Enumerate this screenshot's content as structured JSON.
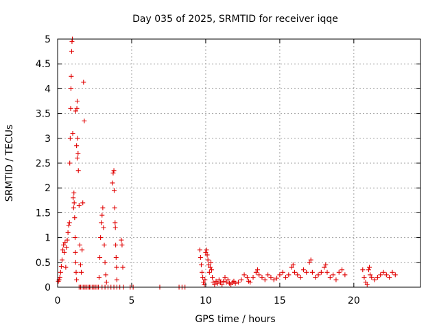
{
  "chart_data": {
    "type": "scatter",
    "title": "Day 035 of 2025, SRMTID for receiver iqqe",
    "xlabel": "GPS time / hours",
    "ylabel": "SRMTID / TECUs",
    "xlim": [
      0,
      24.5
    ],
    "ylim": [
      0,
      5
    ],
    "xticks": [
      0,
      5,
      10,
      15,
      20
    ],
    "xtick_labels": [
      "0",
      "5",
      "10",
      "15",
      "20"
    ],
    "yticks": [
      0,
      0.5,
      1,
      1.5,
      2,
      2.5,
      3,
      3.5,
      4,
      4.5,
      5
    ],
    "ytick_labels": [
      "0",
      "0.5",
      "1",
      "1.5",
      "2",
      "2.5",
      "3",
      "3.5",
      "4",
      "4.5",
      "5"
    ],
    "grid": true,
    "marker": "plus",
    "series": [
      {
        "name": "SRMTID",
        "color": "#e00000",
        "points": [
          [
            0.05,
            0.12
          ],
          [
            0.1,
            0.15
          ],
          [
            0.15,
            0.2
          ],
          [
            0.2,
            0.3
          ],
          [
            0.25,
            0.42
          ],
          [
            0.3,
            0.55
          ],
          [
            0.35,
            0.75
          ],
          [
            0.4,
            0.85
          ],
          [
            0.45,
            0.7
          ],
          [
            0.5,
            0.9
          ],
          [
            0.55,
            0.4
          ],
          [
            0.6,
            0.8
          ],
          [
            0.65,
            0.95
          ],
          [
            0.7,
            1.1
          ],
          [
            0.75,
            1.25
          ],
          [
            0.8,
            1.3
          ],
          [
            0.82,
            2.5
          ],
          [
            0.85,
            3.0
          ],
          [
            0.88,
            3.6
          ],
          [
            0.9,
            4.0
          ],
          [
            0.92,
            4.25
          ],
          [
            0.95,
            4.75
          ],
          [
            0.97,
            4.95
          ],
          [
            1.0,
            5.0
          ],
          [
            1.02,
            3.1
          ],
          [
            1.05,
            1.8
          ],
          [
            1.08,
            1.6
          ],
          [
            1.1,
            1.9
          ],
          [
            1.12,
            1.7
          ],
          [
            1.15,
            1.4
          ],
          [
            1.18,
            1.0
          ],
          [
            1.2,
            0.7
          ],
          [
            1.22,
            0.5
          ],
          [
            1.25,
            0.3
          ],
          [
            1.28,
            0.15
          ],
          [
            1.3,
            3.6
          ],
          [
            1.32,
            3.75
          ],
          [
            1.35,
            3.0
          ],
          [
            1.38,
            2.7
          ],
          [
            1.4,
            2.35
          ],
          [
            1.45,
            1.65
          ],
          [
            1.5,
            0.85
          ],
          [
            1.55,
            0.45
          ],
          [
            1.6,
            0.3
          ],
          [
            1.65,
            0.75
          ],
          [
            1.7,
            1.7
          ],
          [
            1.75,
            4.13
          ],
          [
            1.8,
            3.35
          ],
          [
            1.22,
            3.55
          ],
          [
            1.28,
            2.85
          ],
          [
            1.32,
            2.6
          ],
          [
            1.45,
            0.0
          ],
          [
            1.55,
            0.0
          ],
          [
            1.65,
            0.0
          ],
          [
            1.75,
            0.0
          ],
          [
            1.85,
            0.0
          ],
          [
            1.95,
            0.0
          ],
          [
            2.05,
            0.0
          ],
          [
            2.15,
            0.0
          ],
          [
            2.25,
            0.0
          ],
          [
            2.35,
            0.0
          ],
          [
            2.45,
            0.0
          ],
          [
            2.55,
            0.0
          ],
          [
            2.65,
            0.0
          ],
          [
            2.75,
            0.0
          ],
          [
            2.8,
            0.2
          ],
          [
            2.85,
            0.6
          ],
          [
            2.9,
            1.0
          ],
          [
            2.95,
            1.3
          ],
          [
            3.0,
            1.45
          ],
          [
            3.05,
            1.6
          ],
          [
            3.1,
            1.2
          ],
          [
            3.15,
            0.85
          ],
          [
            3.2,
            0.5
          ],
          [
            3.25,
            0.25
          ],
          [
            3.3,
            0.1
          ],
          [
            3.0,
            0.0
          ],
          [
            3.2,
            0.0
          ],
          [
            3.4,
            0.0
          ],
          [
            3.6,
            0.0
          ],
          [
            3.7,
            2.1
          ],
          [
            3.75,
            2.3
          ],
          [
            3.8,
            2.35
          ],
          [
            3.82,
            1.95
          ],
          [
            3.85,
            1.6
          ],
          [
            3.88,
            1.3
          ],
          [
            3.9,
            1.2
          ],
          [
            3.92,
            0.85
          ],
          [
            3.95,
            0.6
          ],
          [
            3.98,
            0.4
          ],
          [
            4.0,
            0.15
          ],
          [
            3.8,
            0.0
          ],
          [
            4.0,
            0.0
          ],
          [
            4.2,
            0.0
          ],
          [
            4.3,
            0.95
          ],
          [
            4.35,
            0.85
          ],
          [
            4.4,
            0.4
          ],
          [
            4.45,
            0.0
          ],
          [
            4.9,
            0.0
          ],
          [
            5.1,
            0.0
          ],
          [
            6.9,
            0.0
          ],
          [
            8.2,
            0.0
          ],
          [
            8.4,
            0.0
          ],
          [
            8.6,
            0.0
          ],
          [
            9.6,
            0.75
          ],
          [
            9.65,
            0.6
          ],
          [
            9.7,
            0.45
          ],
          [
            9.75,
            0.3
          ],
          [
            9.8,
            0.2
          ],
          [
            9.85,
            0.1
          ],
          [
            9.9,
            0.05
          ],
          [
            9.95,
            0.15
          ],
          [
            10.0,
            0.7
          ],
          [
            10.05,
            0.75
          ],
          [
            10.1,
            0.65
          ],
          [
            10.15,
            0.55
          ],
          [
            10.2,
            0.45
          ],
          [
            10.25,
            0.3
          ],
          [
            10.3,
            0.4
          ],
          [
            10.35,
            0.5
          ],
          [
            10.4,
            0.35
          ],
          [
            10.45,
            0.2
          ],
          [
            10.5,
            0.1
          ],
          [
            10.6,
            0.05
          ],
          [
            10.7,
            0.12
          ],
          [
            10.8,
            0.08
          ],
          [
            10.9,
            0.15
          ],
          [
            11.0,
            0.1
          ],
          [
            11.1,
            0.05
          ],
          [
            11.2,
            0.12
          ],
          [
            11.3,
            0.2
          ],
          [
            11.4,
            0.1
          ],
          [
            11.5,
            0.15
          ],
          [
            11.6,
            0.08
          ],
          [
            11.7,
            0.05
          ],
          [
            11.8,
            0.1
          ],
          [
            11.9,
            0.12
          ],
          [
            12.0,
            0.08
          ],
          [
            12.2,
            0.1
          ],
          [
            12.4,
            0.15
          ],
          [
            12.6,
            0.25
          ],
          [
            12.8,
            0.2
          ],
          [
            12.9,
            0.12
          ],
          [
            13.0,
            0.1
          ],
          [
            13.2,
            0.2
          ],
          [
            13.4,
            0.3
          ],
          [
            13.5,
            0.35
          ],
          [
            13.6,
            0.25
          ],
          [
            13.8,
            0.2
          ],
          [
            14.0,
            0.15
          ],
          [
            14.2,
            0.25
          ],
          [
            14.4,
            0.2
          ],
          [
            14.6,
            0.15
          ],
          [
            14.8,
            0.18
          ],
          [
            15.0,
            0.25
          ],
          [
            15.2,
            0.3
          ],
          [
            15.4,
            0.2
          ],
          [
            15.6,
            0.25
          ],
          [
            15.8,
            0.4
          ],
          [
            15.9,
            0.45
          ],
          [
            16.0,
            0.3
          ],
          [
            16.2,
            0.25
          ],
          [
            16.4,
            0.2
          ],
          [
            16.6,
            0.35
          ],
          [
            16.8,
            0.3
          ],
          [
            17.0,
            0.5
          ],
          [
            17.1,
            0.55
          ],
          [
            17.2,
            0.3
          ],
          [
            17.4,
            0.2
          ],
          [
            17.6,
            0.25
          ],
          [
            17.8,
            0.3
          ],
          [
            18.0,
            0.4
          ],
          [
            18.1,
            0.45
          ],
          [
            18.2,
            0.3
          ],
          [
            18.4,
            0.2
          ],
          [
            18.6,
            0.25
          ],
          [
            18.8,
            0.15
          ],
          [
            19.0,
            0.3
          ],
          [
            19.2,
            0.35
          ],
          [
            19.4,
            0.25
          ],
          [
            20.6,
            0.35
          ],
          [
            20.7,
            0.2
          ],
          [
            20.8,
            0.1
          ],
          [
            20.9,
            0.05
          ],
          [
            21.0,
            0.35
          ],
          [
            21.05,
            0.4
          ],
          [
            21.1,
            0.25
          ],
          [
            21.2,
            0.2
          ],
          [
            21.4,
            0.15
          ],
          [
            21.6,
            0.2
          ],
          [
            21.8,
            0.25
          ],
          [
            22.0,
            0.3
          ],
          [
            22.2,
            0.25
          ],
          [
            22.4,
            0.2
          ],
          [
            22.6,
            0.3
          ],
          [
            22.8,
            0.25
          ]
        ]
      }
    ]
  }
}
